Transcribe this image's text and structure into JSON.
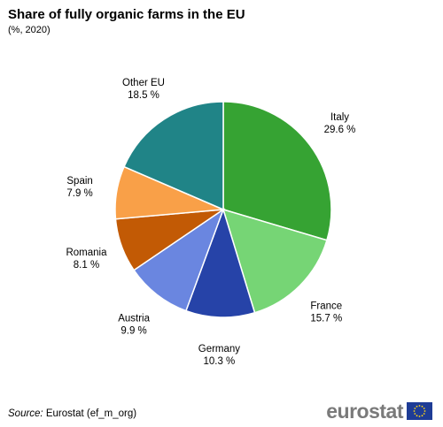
{
  "header": {
    "title": "Share of fully organic farms in the EU",
    "subtitle": "(%, 2020)"
  },
  "chart_data": {
    "type": "pie",
    "title": "Share of fully organic farms in the EU",
    "subtitle": "(%, 2020)",
    "unit": "%",
    "slices": [
      {
        "label": "Italy",
        "value": 29.6,
        "display": "29.6 %",
        "color": "#36a333"
      },
      {
        "label": "France",
        "value": 15.7,
        "display": "15.7 %",
        "color": "#76d575"
      },
      {
        "label": "Germany",
        "value": 10.3,
        "display": "10.3 %",
        "color": "#2643a8"
      },
      {
        "label": "Austria",
        "value": 9.9,
        "display": "9.9 %",
        "color": "#6a86e0"
      },
      {
        "label": "Romania",
        "value": 8.1,
        "display": "8.1 %",
        "color": "#c25a05"
      },
      {
        "label": "Spain",
        "value": 7.9,
        "display": "7.9 %",
        "color": "#f9a048"
      },
      {
        "label": "Other EU",
        "value": 18.5,
        "display": "18.5 %",
        "color": "#208487"
      }
    ],
    "start_angle": "12 o'clock",
    "direction": "clockwise"
  },
  "footer": {
    "source_label": "Source:",
    "source_text": " Eurostat (ef_m_org)",
    "logo_text": "eurostat"
  }
}
